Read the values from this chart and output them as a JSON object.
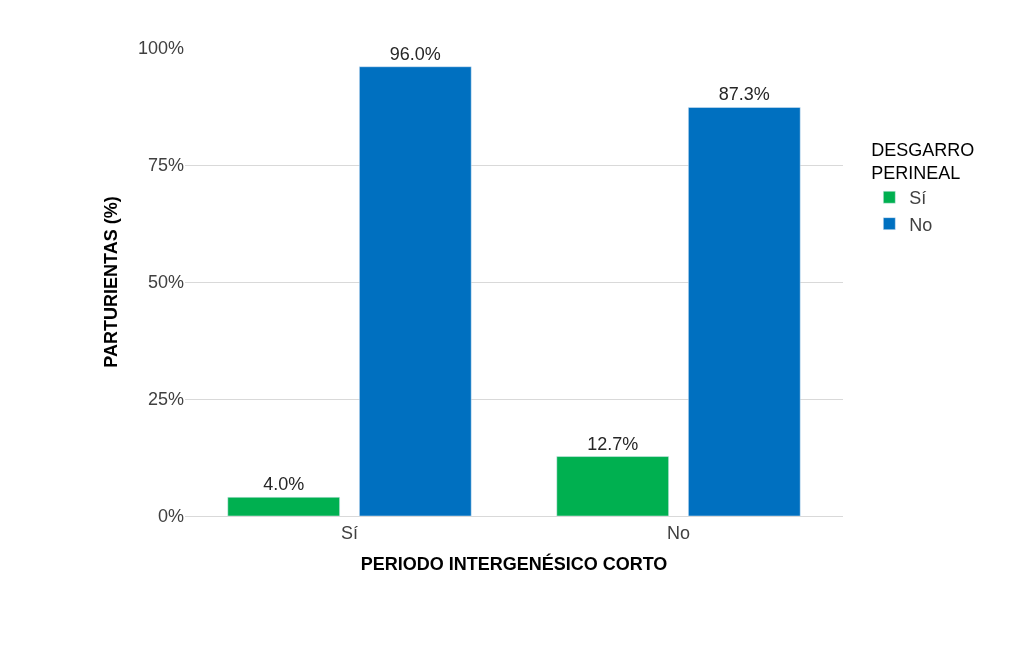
{
  "chart_data": {
    "type": "bar",
    "categories": [
      "Sí",
      "No"
    ],
    "series": [
      {
        "name": "Sí",
        "color": "#00b050",
        "values": [
          4.0,
          12.7
        ],
        "value_labels": [
          "4.0%",
          "12.7%"
        ]
      },
      {
        "name": "No",
        "color": "#0070c0",
        "values": [
          96.0,
          87.3
        ],
        "value_labels": [
          "96.0%",
          "87.3%"
        ]
      }
    ],
    "xlabel": "PERIODO INTERGENÉSICO CORTO",
    "ylabel": "PARTURIENTAS (%)",
    "legend_title": "DESGARRO PERINEAL",
    "ylim": [
      0,
      100
    ],
    "yticks": [
      {
        "value": 0,
        "label": "0%"
      },
      {
        "value": 25,
        "label": "25%"
      },
      {
        "value": 50,
        "label": "50%"
      },
      {
        "value": 75,
        "label": "75%"
      },
      {
        "value": 100,
        "label": "100%"
      }
    ],
    "grid": "y",
    "legend": "right"
  }
}
